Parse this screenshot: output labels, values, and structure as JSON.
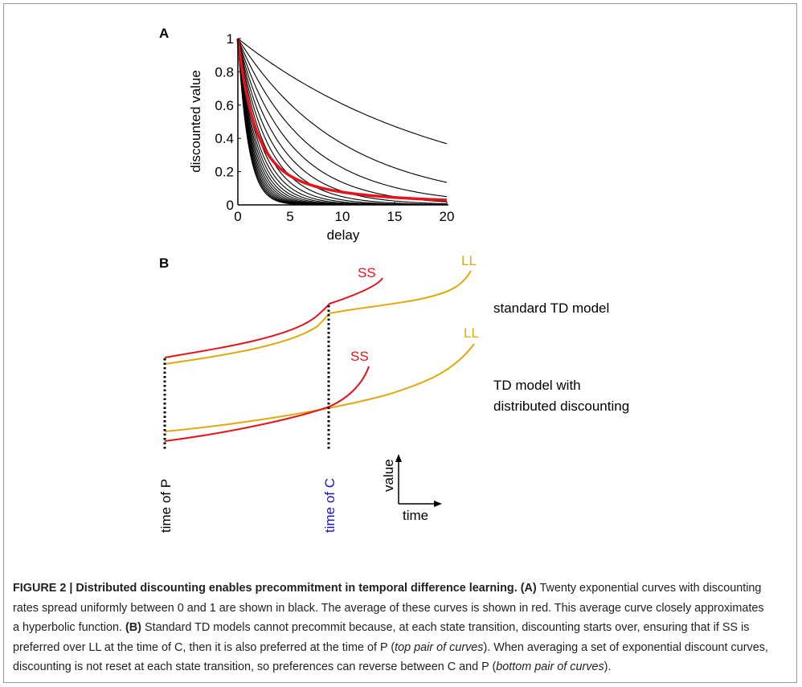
{
  "panel_a": {
    "label": "A",
    "ylabel": "discounted value",
    "xlabel": "delay",
    "yticks": [
      "0",
      "0.2",
      "0.4",
      "0.6",
      "0.8",
      "1"
    ],
    "xticks": [
      "0",
      "5",
      "10",
      "15",
      "20"
    ]
  },
  "panel_b": {
    "label": "B",
    "top_model_label": "standard TD model",
    "bottom_model_label_1": "TD model with",
    "bottom_model_label_2": "distributed discounting",
    "ss_label": "SS",
    "ll_label": "LL",
    "time_p_label": "time of P",
    "time_c_label": "time of C",
    "axis_value_label": "value",
    "axis_time_label": "time"
  },
  "colors": {
    "black": "#000000",
    "red": "#e3141b",
    "gold": "#e0aa0f",
    "blue": "#1414d4"
  },
  "chart_data": [
    {
      "type": "line",
      "xlabel": "delay",
      "ylabel": "discounted value",
      "xlim": [
        0,
        20
      ],
      "ylim": [
        0,
        1
      ],
      "grid": false,
      "series_black": "Twenty exponential curves value = exp(-k*delay), k = 0.05, 0.10, ..., 1.00",
      "rates": [
        0.05,
        0.1,
        0.15,
        0.2,
        0.25,
        0.3,
        0.35,
        0.4,
        0.45,
        0.5,
        0.55,
        0.6,
        0.65,
        0.7,
        0.75,
        0.8,
        0.85,
        0.9,
        0.95,
        1.0
      ],
      "average_series_color": "red"
    }
  ],
  "caption": {
    "lead": "FIGURE 2 | Distributed discounting enables precommitment in temporal difference learning. (A)",
    "p1": " Twenty exponential curves with discounting rates spread uniformly between 0 and 1 are shown in black. The average of these curves is shown in red. This average curve closely approximates a hyperbolic function. ",
    "b_label": "(B)",
    "p2": " Standard TD models cannot precommit because, at each state transition, discounting starts over, ensuring that if SS is preferred over LL at the time of C, then it is also preferred at the time of P (",
    "i1": "top pair of curves",
    "p3": "). When averaging a set of exponential discount curves, discounting is not reset at each state transition, so preferences can reverse between C and P (",
    "i2": "bottom pair of curves",
    "p4": ")."
  }
}
